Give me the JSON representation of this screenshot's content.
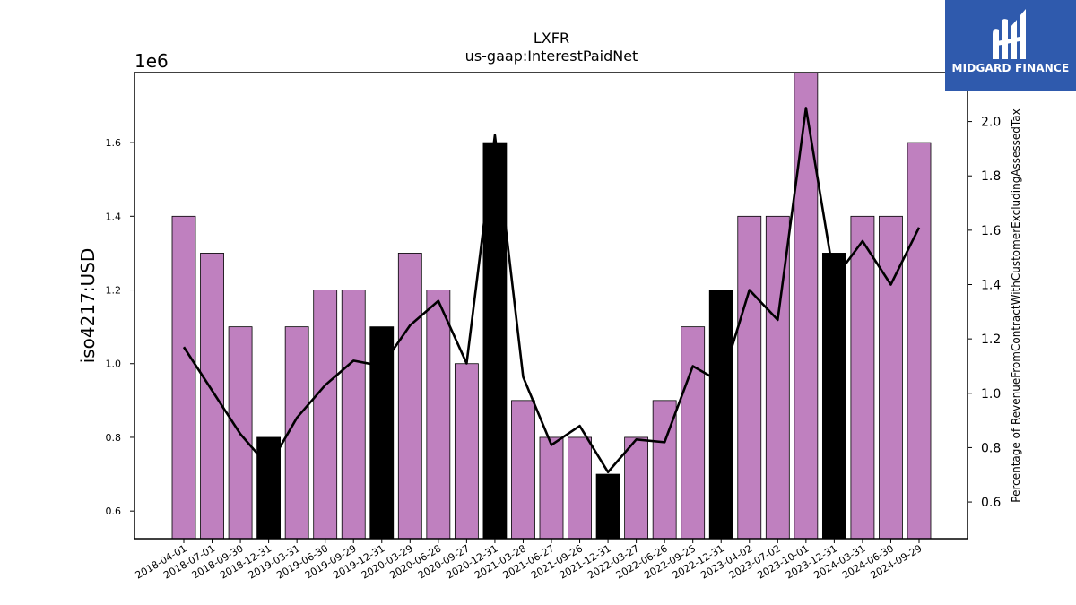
{
  "chart_data": {
    "type": "bar",
    "title": "LXFR",
    "subtitle": "us-gaap:InterestPaidNet",
    "ylabel": "iso4217:USD",
    "y_offset_label": "1e6",
    "y2label": "Percentage of RevenueFromContractWithCustomerExcludingAssessedTax",
    "ylim": [
      0.525,
      1.79
    ],
    "y2lim": [
      0.465,
      2.18
    ],
    "yticks": [
      "0.6",
      "0.8",
      "1.0",
      "1.2",
      "1.4",
      "1.6"
    ],
    "y2ticks": [
      "0.6",
      "0.8",
      "1.0",
      "1.2",
      "1.4",
      "1.6",
      "1.8",
      "2.0"
    ],
    "categories": [
      "2018-04-01",
      "2018-07-01",
      "2018-09-30",
      "2018-12-31",
      "2019-03-31",
      "2019-06-30",
      "2019-09-29",
      "2019-12-31",
      "2020-03-29",
      "2020-06-28",
      "2020-09-27",
      "2020-12-31",
      "2021-03-28",
      "2021-06-27",
      "2021-09-26",
      "2021-12-31",
      "2022-03-27",
      "2022-06-26",
      "2022-09-25",
      "2022-12-31",
      "2023-04-02",
      "2023-07-02",
      "2023-10-01",
      "2023-12-31",
      "2024-03-31",
      "2024-06-30",
      "2024-09-29"
    ],
    "series": [
      {
        "values": [
          1.4,
          1.3,
          1.1,
          0.8,
          1.1,
          1.2,
          1.2,
          1.1,
          1.3,
          1.2,
          1.0,
          1.6,
          0.9,
          0.8,
          0.8,
          0.7,
          0.8,
          0.9,
          1.1,
          1.2,
          1.4,
          1.4,
          1.8,
          1.3,
          1.4,
          1.4,
          1.6
        ],
        "annual": [
          false,
          false,
          false,
          true,
          false,
          false,
          false,
          true,
          false,
          false,
          false,
          true,
          false,
          false,
          false,
          true,
          false,
          false,
          false,
          true,
          false,
          false,
          false,
          true,
          false,
          false,
          false
        ]
      },
      {
        "axis": "right",
        "type": "line",
        "values": [
          1.17,
          1.01,
          0.85,
          0.73,
          0.91,
          1.03,
          1.12,
          1.1,
          1.25,
          1.34,
          1.11,
          1.95,
          1.06,
          0.81,
          0.88,
          0.71,
          0.83,
          0.82,
          1.1,
          1.04,
          1.38,
          1.27,
          2.05,
          1.42,
          1.56,
          1.4,
          1.61
        ]
      }
    ],
    "colors": {
      "quarter_bar": "#bf80bf",
      "annual_bar": "#000000",
      "line": "#000000",
      "axis": "#000000"
    }
  },
  "logo": {
    "text": "MIDGARD FINANCE"
  }
}
